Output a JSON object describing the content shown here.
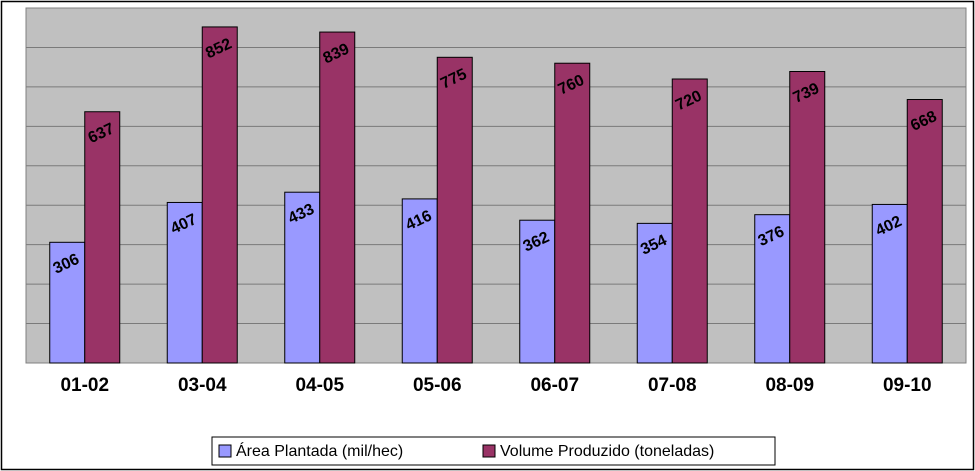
{
  "chart_data": {
    "type": "bar",
    "categories": [
      "01-02",
      "03-04",
      "04-05",
      "05-06",
      "06-07",
      "07-08",
      "08-09",
      "09-10"
    ],
    "series": [
      {
        "name": "Área Plantada (mil/hec)",
        "values": [
          306,
          407,
          433,
          416,
          362,
          354,
          376,
          402
        ],
        "color": "#9999ff"
      },
      {
        "name": "Volume Produzido (toneladas)",
        "values": [
          637,
          852,
          839,
          775,
          760,
          720,
          739,
          668
        ],
        "color": "#993366"
      }
    ],
    "ylim": [
      0,
      900
    ],
    "y_tick_step": 100,
    "y_tick_labels_shown": false,
    "grid": true,
    "plot_background": "#c0c0c0",
    "legend_position": "bottom",
    "data_labels": true,
    "data_label_rotation_deg": -25
  }
}
